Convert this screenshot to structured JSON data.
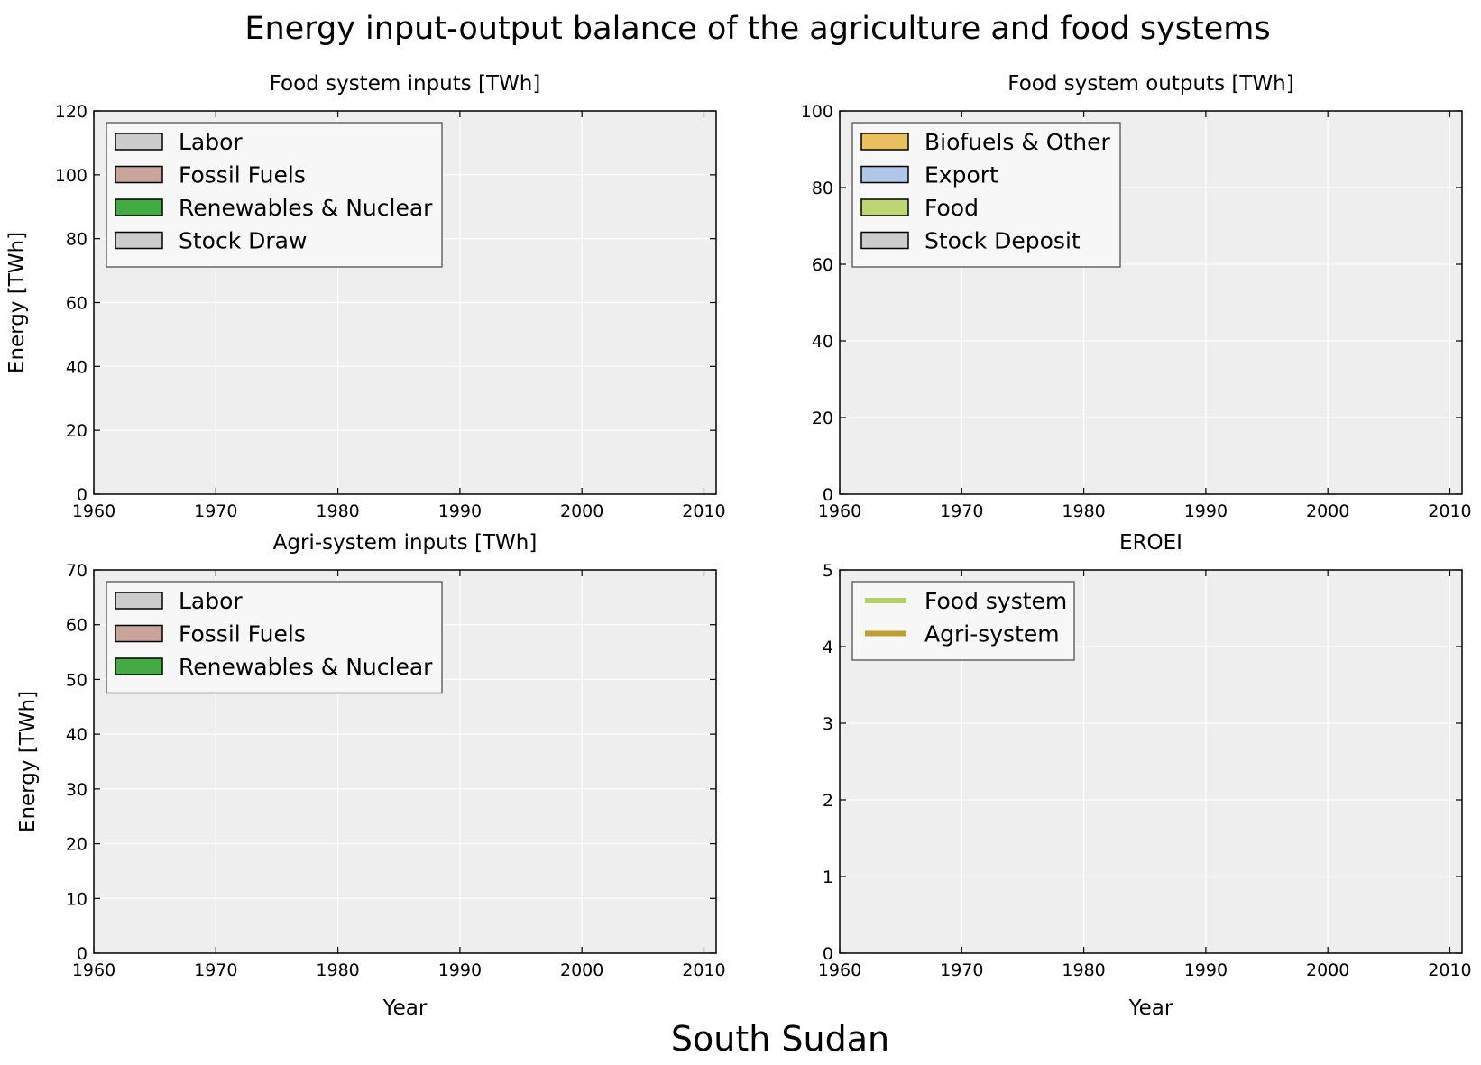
{
  "figure": {
    "title": "Energy input-output balance of the agriculture and food systems",
    "footer": "South Sudan"
  },
  "chart_data": [
    {
      "type": "area",
      "title": "Food system inputs [TWh]",
      "xlabel": "",
      "ylabel": "Energy [TWh]",
      "xlim": [
        1960,
        2011
      ],
      "ylim": [
        0,
        120
      ],
      "xticks": [
        1960,
        1970,
        1980,
        1990,
        2000,
        2010
      ],
      "yticks": [
        0,
        20,
        40,
        60,
        80,
        100,
        120
      ],
      "grid": true,
      "legend": "top-left",
      "series": [
        {
          "name": "Labor",
          "color": "#cccccc",
          "values": []
        },
        {
          "name": "Fossil Fuels",
          "color": "#c9a49a",
          "values": []
        },
        {
          "name": "Renewables & Nuclear",
          "color": "#44aa44",
          "values": []
        },
        {
          "name": "Stock Draw",
          "color": "#cccccc",
          "values": []
        }
      ]
    },
    {
      "type": "area",
      "title": "Food system outputs [TWh]",
      "xlabel": "",
      "ylabel": "",
      "xlim": [
        1960,
        2011
      ],
      "ylim": [
        0,
        100
      ],
      "xticks": [
        1960,
        1970,
        1980,
        1990,
        2000,
        2010
      ],
      "yticks": [
        0,
        20,
        40,
        60,
        80,
        100
      ],
      "grid": true,
      "legend": "top-left",
      "series": [
        {
          "name": "Biofuels & Other",
          "color": "#e8c060",
          "values": []
        },
        {
          "name": "Export",
          "color": "#aec7e8",
          "values": []
        },
        {
          "name": "Food",
          "color": "#bcd676",
          "values": []
        },
        {
          "name": "Stock Deposit",
          "color": "#cccccc",
          "values": []
        }
      ]
    },
    {
      "type": "area",
      "title": "Agri-system inputs [TWh]",
      "xlabel": "Year",
      "ylabel": "Energy [TWh]",
      "xlim": [
        1960,
        2011
      ],
      "ylim": [
        0,
        70
      ],
      "xticks": [
        1960,
        1970,
        1980,
        1990,
        2000,
        2010
      ],
      "yticks": [
        0,
        10,
        20,
        30,
        40,
        50,
        60,
        70
      ],
      "grid": true,
      "legend": "top-left",
      "series": [
        {
          "name": "Labor",
          "color": "#cccccc",
          "values": []
        },
        {
          "name": "Fossil Fuels",
          "color": "#c9a49a",
          "values": []
        },
        {
          "name": "Renewables & Nuclear",
          "color": "#44aa44",
          "values": []
        }
      ]
    },
    {
      "type": "line",
      "title": "EROEI",
      "xlabel": "Year",
      "ylabel": "",
      "xlim": [
        1960,
        2011
      ],
      "ylim": [
        0,
        5
      ],
      "xticks": [
        1960,
        1970,
        1980,
        1990,
        2000,
        2010
      ],
      "yticks": [
        0,
        1,
        2,
        3,
        4,
        5
      ],
      "grid": true,
      "legend": "top-left",
      "series": [
        {
          "name": "Food system",
          "color": "#b5cf6b",
          "values": []
        },
        {
          "name": "Agri-system",
          "color": "#bd9e39",
          "values": []
        }
      ]
    }
  ]
}
